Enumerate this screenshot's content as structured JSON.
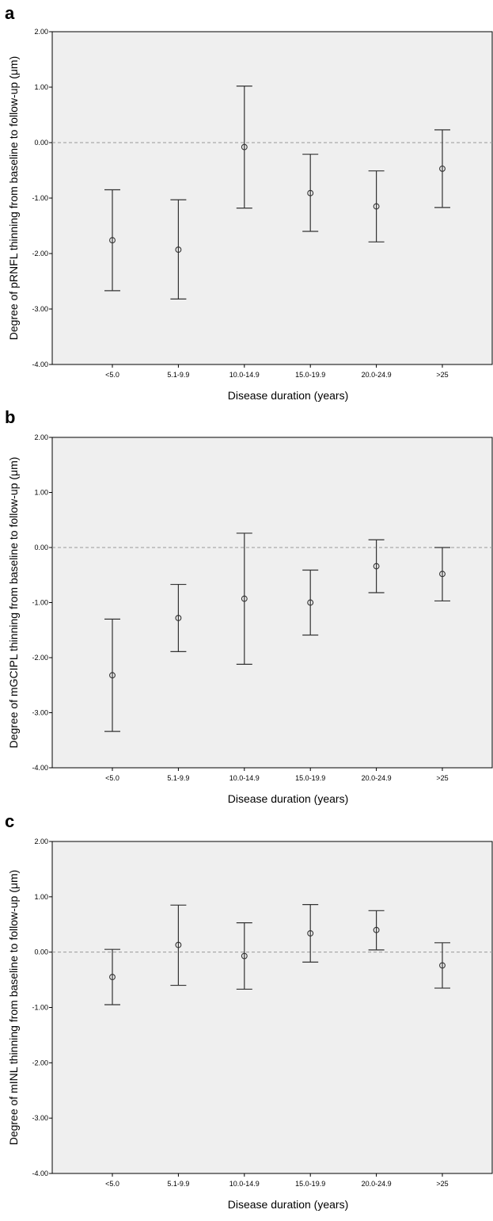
{
  "chart_data": [
    {
      "type": "errorbar",
      "panel": "a",
      "xlabel": "Disease duration (years)",
      "ylabel": "Degree of pRNFL thinning from baseline to follow-up (μm)",
      "ylim": [
        -4.0,
        2.0
      ],
      "yticks": [
        "2.00",
        "1.00",
        "0.00",
        "-1.00",
        "-2.00",
        "-3.00",
        "-4.00"
      ],
      "categories": [
        "<5.0",
        "5.1-9.9",
        "10.0-14.9",
        "15.0-19.9",
        "20.0-24.9",
        ">25"
      ],
      "mean": [
        -1.76,
        -1.93,
        -0.08,
        -0.91,
        -1.15,
        -0.47
      ],
      "lower": [
        -2.67,
        -2.82,
        -1.18,
        -1.6,
        -1.79,
        -1.17
      ],
      "upper": [
        -0.85,
        -1.03,
        1.02,
        -0.21,
        -0.51,
        0.23
      ],
      "reference_line": 0.0,
      "grid": false
    },
    {
      "type": "errorbar",
      "panel": "b",
      "xlabel": "Disease duration (years)",
      "ylabel": "Degree of mGCIPL thinning from baseline to follow-up (μm)",
      "ylim": [
        -4.0,
        2.0
      ],
      "yticks": [
        "2.00",
        "1.00",
        "0.00",
        "-1.00",
        "-2.00",
        "-3.00",
        "-4.00"
      ],
      "categories": [
        "<5.0",
        "5.1-9.9",
        "10.0-14.9",
        "15.0-19.9",
        "20.0-24.9",
        ">25"
      ],
      "mean": [
        -2.32,
        -1.28,
        -0.93,
        -1.0,
        -0.34,
        -0.48
      ],
      "lower": [
        -3.34,
        -1.89,
        -2.12,
        -1.59,
        -0.82,
        -0.97
      ],
      "upper": [
        -1.3,
        -0.67,
        0.26,
        -0.41,
        0.14,
        0.0
      ],
      "reference_line": 0.0,
      "grid": false
    },
    {
      "type": "errorbar",
      "panel": "c",
      "xlabel": "Disease duration (years)",
      "ylabel": "Degree of mINL thinning from baseline to follow-up (μm)",
      "ylim": [
        -4.0,
        2.0
      ],
      "yticks": [
        "2.00",
        "1.00",
        "0.00",
        "-1.00",
        "-2.00",
        "-3.00",
        "-4.00"
      ],
      "categories": [
        "<5.0",
        "5.1-9.9",
        "10.0-14.9",
        "15.0-19.9",
        "20.0-24.9",
        ">25"
      ],
      "mean": [
        -0.45,
        0.13,
        -0.07,
        0.34,
        0.4,
        -0.24
      ],
      "lower": [
        -0.95,
        -0.6,
        -0.67,
        -0.18,
        0.04,
        -0.65
      ],
      "upper": [
        0.05,
        0.85,
        0.53,
        0.86,
        0.75,
        0.17
      ],
      "reference_line": 0.0,
      "grid": false
    }
  ],
  "colors": {
    "plot_background": "#efefef",
    "axis": "#000000",
    "marker": "#333333",
    "reference_line": "#9a9a9a"
  }
}
